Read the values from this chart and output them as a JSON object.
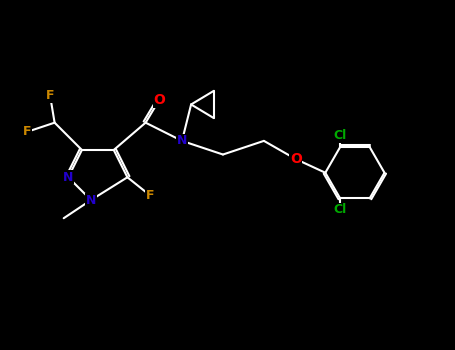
{
  "background_color": "#000000",
  "figsize": [
    4.55,
    3.5
  ],
  "dpi": 100,
  "bond_color": "#ffffff",
  "bond_lw": 1.5,
  "atom_colors": {
    "F": "#cc8800",
    "O": "#ff0000",
    "N": "#2200cc",
    "Cl": "#00aa00",
    "C": "#ffffff",
    "default": "#ffffff"
  },
  "font_size": 9
}
